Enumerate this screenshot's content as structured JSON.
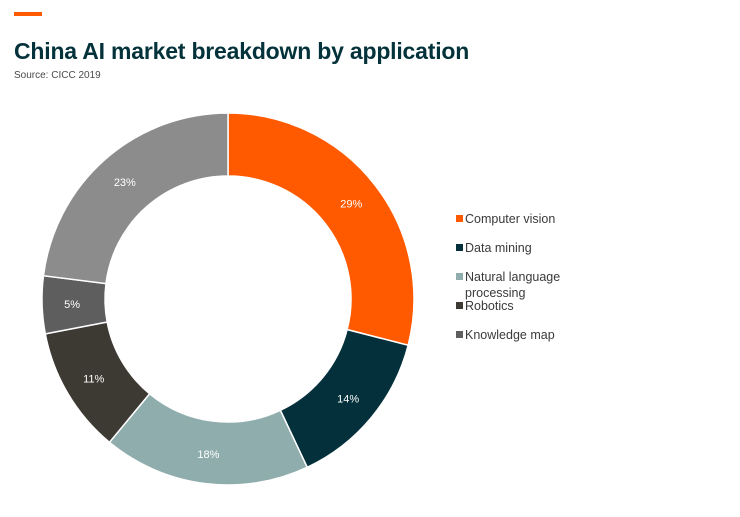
{
  "header": {
    "title": "China AI market breakdown by application",
    "source": "Source: CICC 2019",
    "accent_color": "#ff5a00"
  },
  "chart_data": {
    "type": "pie",
    "variant": "donut",
    "title": "China AI market breakdown by application",
    "legend_position": "right",
    "slices": [
      {
        "label": "Computer vision",
        "value": 29,
        "value_label": "29%",
        "color": "#ff5a00"
      },
      {
        "label": "Data mining",
        "value": 14,
        "value_label": "14%",
        "color": "#03303a"
      },
      {
        "label": "Natural language processing",
        "legend_lines": [
          "Natural language",
          "processing"
        ],
        "value": 18,
        "value_label": "18%",
        "color": "#8fadac"
      },
      {
        "label": "Robotics",
        "value": 11,
        "value_label": "11%",
        "color": "#3d3933"
      },
      {
        "label": "Knowledge map",
        "value": 5,
        "value_label": "5%",
        "color": "#5e5e5e"
      },
      {
        "label": "",
        "value": 23,
        "value_label": "23%",
        "color": "#8c8c8c"
      }
    ]
  }
}
